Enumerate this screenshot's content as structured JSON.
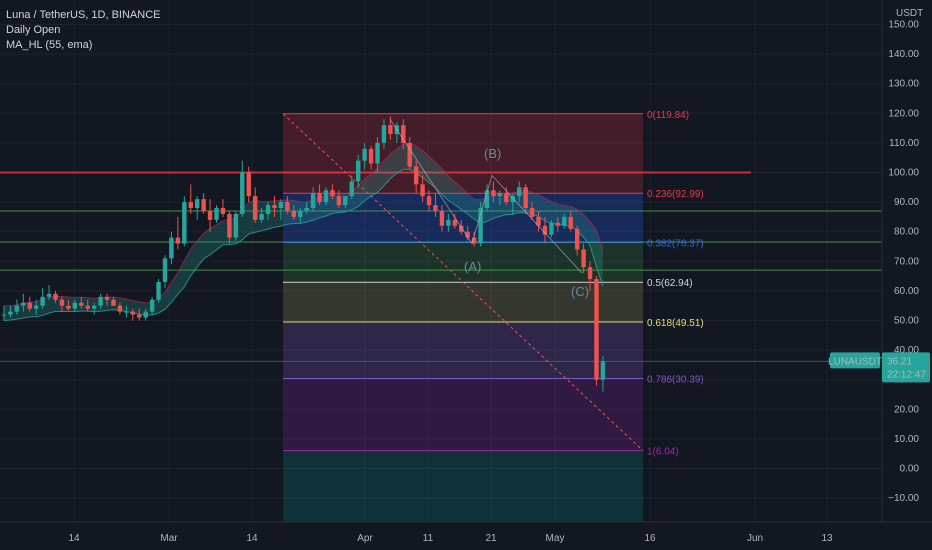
{
  "header": {
    "symbol_line": "Luna / TetherUS, 1D, BINANCE",
    "indicator_1": "Daily Open",
    "indicator_2": "MA_HL (55, ema)"
  },
  "price_axis": {
    "currency": "USDT",
    "ticks": [
      "150.00",
      "140.00",
      "130.00",
      "120.00",
      "110.00",
      "100.00",
      "90.00",
      "80.00",
      "70.00",
      "60.00",
      "50.00",
      "40.00",
      "30.00",
      "20.00",
      "10.00",
      "0.00",
      "−10.00"
    ]
  },
  "time_axis": {
    "ticks": [
      "14",
      "Mar",
      "14",
      "Apr",
      "11",
      "21",
      "May",
      "16",
      "Jun",
      "13"
    ]
  },
  "price_label": {
    "symbol": "LUNAUSDT",
    "price": "36.21",
    "countdown": "22:12:47",
    "color": "#26a69a"
  },
  "fib_levels": [
    {
      "ratio": 0,
      "label": "0(119.84)",
      "value": 119.84,
      "color": "#f23645"
    },
    {
      "ratio": 0.236,
      "label": "0.236(92.99)",
      "value": 92.99,
      "color": "#f23645"
    },
    {
      "ratio": 0.382,
      "label": "0.382(76.37)",
      "value": 76.37,
      "color": "#2962ff"
    },
    {
      "ratio": 0.5,
      "label": "0.5(62.94)",
      "value": 62.94,
      "color": "#d1d4dc"
    },
    {
      "ratio": 0.618,
      "label": "0.618(49.51)",
      "value": 49.51,
      "color": "#e0e06a"
    },
    {
      "ratio": 0.786,
      "label": "0.786(30.39)",
      "value": 30.39,
      "color": "#7e57c2"
    },
    {
      "ratio": 1,
      "label": "1(6.04)",
      "value": 6.04,
      "color": "#9c27b0"
    }
  ],
  "wave_labels": {
    "a": "(A)",
    "b": "(B)",
    "c": "(C)"
  },
  "horizontal_lines": [
    {
      "value": 100,
      "color": "#f23645"
    },
    {
      "value": 87,
      "color": "#4caf50"
    },
    {
      "value": 76.5,
      "color": "#4caf50"
    },
    {
      "value": 67,
      "color": "#4caf50"
    },
    {
      "value": 36.21,
      "color": "#26a69a"
    }
  ],
  "colors": {
    "background": "#131722",
    "up": "#26a69a",
    "down": "#ef5350",
    "grid": "#1e222d"
  },
  "chart_data": {
    "type": "candlestick",
    "x_unit": "daily",
    "y_axis_unit": "USDT",
    "ylim": [
      -15,
      157
    ],
    "candles_ohlc": [
      [
        52,
        55,
        50,
        52
      ],
      [
        52,
        55,
        51,
        53
      ],
      [
        53,
        57,
        52,
        55
      ],
      [
        55,
        59,
        53,
        56
      ],
      [
        56,
        58,
        53,
        54
      ],
      [
        54,
        57,
        52,
        55
      ],
      [
        55,
        61,
        54,
        58
      ],
      [
        58,
        62,
        57,
        59
      ],
      [
        59,
        60,
        56,
        57
      ],
      [
        57,
        58,
        53,
        55
      ],
      [
        55,
        57,
        53,
        54
      ],
      [
        54,
        57,
        53,
        56
      ],
      [
        56,
        58,
        54,
        55
      ],
      [
        55,
        57,
        53,
        54
      ],
      [
        54,
        56,
        52,
        55
      ],
      [
        55,
        59,
        54,
        58
      ],
      [
        58,
        59,
        55,
        57
      ],
      [
        57,
        58,
        55,
        55
      ],
      [
        55,
        56,
        52,
        53
      ],
      [
        53,
        55,
        51,
        53
      ],
      [
        53,
        54,
        50,
        52
      ],
      [
        52,
        54,
        50,
        51
      ],
      [
        51,
        54,
        50,
        53
      ],
      [
        53,
        58,
        52,
        57
      ],
      [
        57,
        64,
        56,
        63
      ],
      [
        63,
        72,
        61,
        71
      ],
      [
        71,
        80,
        69,
        78
      ],
      [
        78,
        85,
        74,
        76
      ],
      [
        76,
        92,
        75,
        90
      ],
      [
        90,
        96,
        86,
        88
      ],
      [
        88,
        92,
        84,
        91
      ],
      [
        91,
        93,
        86,
        87
      ],
      [
        87,
        91,
        80,
        84
      ],
      [
        84,
        89,
        83,
        88
      ],
      [
        88,
        91,
        85,
        86
      ],
      [
        86,
        87,
        76,
        78
      ],
      [
        78,
        87,
        77,
        86
      ],
      [
        86,
        104,
        85,
        100
      ],
      [
        100,
        102,
        90,
        92
      ],
      [
        92,
        95,
        83,
        84
      ],
      [
        84,
        88,
        83,
        86
      ],
      [
        86,
        90,
        84,
        89
      ],
      [
        89,
        92,
        85,
        88
      ],
      [
        88,
        91,
        84,
        90
      ],
      [
        90,
        92,
        86,
        87
      ],
      [
        87,
        89,
        84,
        85
      ],
      [
        85,
        88,
        83,
        87
      ],
      [
        87,
        90,
        86,
        88
      ],
      [
        88,
        95,
        87,
        93
      ],
      [
        93,
        96,
        89,
        90
      ],
      [
        90,
        95,
        89,
        94
      ],
      [
        94,
        96,
        91,
        92
      ],
      [
        92,
        94,
        88,
        89
      ],
      [
        89,
        92,
        88,
        92
      ],
      [
        92,
        99,
        91,
        97
      ],
      [
        97,
        106,
        95,
        104
      ],
      [
        104,
        110,
        101,
        108
      ],
      [
        108,
        109,
        101,
        103
      ],
      [
        103,
        112,
        100,
        110
      ],
      [
        110,
        118,
        108,
        116
      ],
      [
        116,
        119,
        111,
        113
      ],
      [
        113,
        117,
        110,
        116
      ],
      [
        116,
        118,
        108,
        110
      ],
      [
        110,
        112,
        101,
        102
      ],
      [
        102,
        104,
        93,
        96
      ],
      [
        96,
        99,
        90,
        92
      ],
      [
        92,
        94,
        87,
        89
      ],
      [
        89,
        93,
        85,
        87
      ],
      [
        87,
        89,
        80,
        82
      ],
      [
        82,
        86,
        80,
        84
      ],
      [
        84,
        86,
        81,
        82
      ],
      [
        82,
        84,
        79,
        80
      ],
      [
        80,
        82,
        77,
        78
      ],
      [
        78,
        80,
        75,
        76
      ],
      [
        76,
        90,
        75,
        88
      ],
      [
        88,
        96,
        87,
        94
      ],
      [
        94,
        97,
        90,
        92
      ],
      [
        92,
        94,
        89,
        93
      ],
      [
        93,
        95,
        89,
        90
      ],
      [
        90,
        93,
        86,
        92
      ],
      [
        92,
        97,
        90,
        95
      ],
      [
        95,
        96,
        86,
        88
      ],
      [
        88,
        90,
        84,
        85
      ],
      [
        85,
        87,
        80,
        82
      ],
      [
        82,
        85,
        76,
        79
      ],
      [
        79,
        84,
        78,
        83
      ],
      [
        83,
        85,
        80,
        82
      ],
      [
        82,
        86,
        81,
        85
      ],
      [
        85,
        87,
        80,
        81
      ],
      [
        81,
        82,
        72,
        74
      ],
      [
        74,
        76,
        66,
        68
      ],
      [
        68,
        70,
        60,
        64
      ],
      [
        64,
        65,
        28,
        30
      ],
      [
        30,
        38,
        26,
        36.21
      ]
    ]
  }
}
